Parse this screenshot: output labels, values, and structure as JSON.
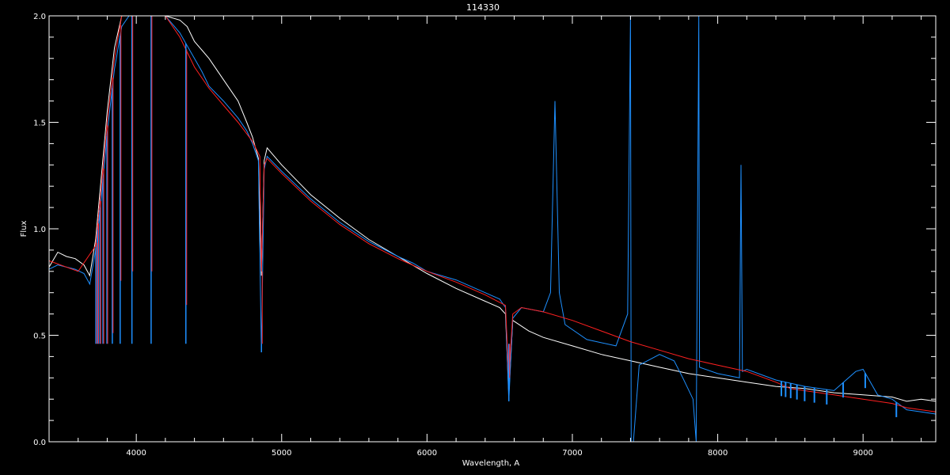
{
  "chart_data": {
    "type": "line",
    "title": "114330",
    "xlabel": "Wavelength, A",
    "ylabel": "Flux",
    "xlim": [
      3400,
      9500
    ],
    "ylim": [
      0.0,
      2.0
    ],
    "x_ticks": [
      4000,
      5000,
      6000,
      7000,
      8000,
      9000
    ],
    "x_tick_labels": [
      "4000",
      "5000",
      "6000",
      "7000",
      "8000",
      "9000"
    ],
    "y_ticks": [
      0.0,
      0.5,
      1.0,
      1.5,
      2.0
    ],
    "y_tick_labels": [
      "0.0",
      "0.5",
      "1.0",
      "1.5",
      "2.0"
    ],
    "grid": false,
    "colors": {
      "background": "#000000",
      "frame": "#ffffff"
    },
    "series": [
      {
        "color": "#ffffff",
        "points": [
          [
            3400,
            0.82
          ],
          [
            3460,
            0.89
          ],
          [
            3520,
            0.87
          ],
          [
            3580,
            0.86
          ],
          [
            3640,
            0.83
          ],
          [
            3680,
            0.78
          ],
          [
            3720,
            0.95
          ],
          [
            3760,
            1.25
          ],
          [
            3800,
            1.55
          ],
          [
            3850,
            1.85
          ],
          [
            3900,
            2.0
          ],
          [
            3950,
            2.0
          ],
          [
            4000,
            2.0
          ],
          [
            4100,
            2.0
          ],
          [
            4200,
            2.0
          ],
          [
            4300,
            1.98
          ],
          [
            4350,
            1.95
          ],
          [
            4400,
            1.88
          ],
          [
            4450,
            1.84
          ],
          [
            4500,
            1.8
          ],
          [
            4600,
            1.7
          ],
          [
            4700,
            1.6
          ],
          [
            4760,
            1.5
          ],
          [
            4800,
            1.43
          ],
          [
            4840,
            1.33
          ],
          [
            4861,
            0.78
          ],
          [
            4880,
            1.32
          ],
          [
            4900,
            1.38
          ],
          [
            5000,
            1.3
          ],
          [
            5200,
            1.16
          ],
          [
            5400,
            1.05
          ],
          [
            5600,
            0.95
          ],
          [
            5800,
            0.87
          ],
          [
            5900,
            0.83
          ],
          [
            6000,
            0.79
          ],
          [
            6200,
            0.72
          ],
          [
            6400,
            0.66
          ],
          [
            6500,
            0.63
          ],
          [
            6540,
            0.6
          ],
          [
            6563,
            0.22
          ],
          [
            6590,
            0.57
          ],
          [
            6700,
            0.52
          ],
          [
            6800,
            0.49
          ],
          [
            7000,
            0.45
          ],
          [
            7200,
            0.41
          ],
          [
            7400,
            0.38
          ],
          [
            7600,
            0.35
          ],
          [
            7800,
            0.32
          ],
          [
            8000,
            0.3
          ],
          [
            8200,
            0.28
          ],
          [
            8400,
            0.26
          ],
          [
            8600,
            0.25
          ],
          [
            8800,
            0.23
          ],
          [
            9000,
            0.22
          ],
          [
            9200,
            0.21
          ],
          [
            9300,
            0.19
          ],
          [
            9400,
            0.2
          ],
          [
            9500,
            0.19
          ]
        ]
      },
      {
        "color": "#1e90ff",
        "points": [
          [
            3400,
            0.81
          ],
          [
            3460,
            0.83
          ],
          [
            3520,
            0.82
          ],
          [
            3580,
            0.81
          ],
          [
            3640,
            0.79
          ],
          [
            3680,
            0.74
          ],
          [
            3720,
            0.9
          ],
          [
            3760,
            1.15
          ],
          [
            3800,
            1.45
          ],
          [
            3850,
            1.75
          ],
          [
            3900,
            1.95
          ],
          [
            3950,
            2.0
          ],
          [
            4000,
            2.0
          ],
          [
            4100,
            2.0
          ],
          [
            4200,
            2.0
          ],
          [
            4300,
            1.92
          ],
          [
            4350,
            1.86
          ],
          [
            4400,
            1.8
          ],
          [
            4450,
            1.74
          ],
          [
            4500,
            1.67
          ],
          [
            4600,
            1.6
          ],
          [
            4700,
            1.52
          ],
          [
            4760,
            1.46
          ],
          [
            4800,
            1.4
          ],
          [
            4840,
            1.32
          ],
          [
            4861,
            0.42
          ],
          [
            4880,
            1.28
          ],
          [
            4900,
            1.34
          ],
          [
            5000,
            1.27
          ],
          [
            5200,
            1.14
          ],
          [
            5400,
            1.03
          ],
          [
            5600,
            0.94
          ],
          [
            5800,
            0.87
          ],
          [
            5900,
            0.84
          ],
          [
            6000,
            0.8
          ],
          [
            6200,
            0.76
          ],
          [
            6400,
            0.7
          ],
          [
            6500,
            0.67
          ],
          [
            6540,
            0.63
          ],
          [
            6563,
            0.19
          ],
          [
            6590,
            0.58
          ],
          [
            6650,
            0.63
          ],
          [
            6800,
            0.61
          ],
          [
            6850,
            0.7
          ],
          [
            6880,
            1.6
          ],
          [
            6910,
            0.7
          ],
          [
            6950,
            0.55
          ],
          [
            7100,
            0.48
          ],
          [
            7300,
            0.45
          ],
          [
            7380,
            0.6
          ],
          [
            7400,
            2.0
          ],
          [
            7405,
            0.0
          ],
          [
            7420,
            0.0
          ],
          [
            7460,
            0.36
          ],
          [
            7600,
            0.41
          ],
          [
            7700,
            0.38
          ],
          [
            7760,
            0.3
          ],
          [
            7830,
            0.2
          ],
          [
            7852,
            0.0
          ],
          [
            7870,
            2.0
          ],
          [
            7875,
            0.35
          ],
          [
            8000,
            0.32
          ],
          [
            8150,
            0.3
          ],
          [
            8160,
            1.3
          ],
          [
            8170,
            0.33
          ],
          [
            8200,
            0.34
          ],
          [
            8400,
            0.29
          ],
          [
            8600,
            0.26
          ],
          [
            8800,
            0.24
          ],
          [
            8950,
            0.33
          ],
          [
            9000,
            0.34
          ],
          [
            9100,
            0.22
          ],
          [
            9200,
            0.2
          ],
          [
            9300,
            0.15
          ],
          [
            9400,
            0.14
          ],
          [
            9500,
            0.13
          ]
        ]
      },
      {
        "color": "#ff2020",
        "points": [
          [
            3400,
            0.85
          ],
          [
            3600,
            0.8
          ],
          [
            3720,
            0.92
          ],
          [
            3760,
            1.2
          ],
          [
            3800,
            1.5
          ],
          [
            3850,
            1.8
          ],
          [
            3900,
            2.0
          ],
          [
            4200,
            2.0
          ],
          [
            4300,
            1.9
          ],
          [
            4400,
            1.76
          ],
          [
            4500,
            1.66
          ],
          [
            4600,
            1.58
          ],
          [
            4700,
            1.5
          ],
          [
            4800,
            1.41
          ],
          [
            4850,
            1.34
          ],
          [
            4861,
            0.8
          ],
          [
            4880,
            1.3
          ],
          [
            4900,
            1.33
          ],
          [
            5000,
            1.26
          ],
          [
            5200,
            1.13
          ],
          [
            5400,
            1.02
          ],
          [
            5600,
            0.93
          ],
          [
            5800,
            0.86
          ],
          [
            6000,
            0.8
          ],
          [
            6200,
            0.75
          ],
          [
            6400,
            0.69
          ],
          [
            6540,
            0.64
          ],
          [
            6563,
            0.3
          ],
          [
            6590,
            0.6
          ],
          [
            6650,
            0.63
          ],
          [
            6800,
            0.61
          ],
          [
            7000,
            0.57
          ],
          [
            7200,
            0.52
          ],
          [
            7400,
            0.47
          ],
          [
            7600,
            0.43
          ],
          [
            7800,
            0.39
          ],
          [
            8000,
            0.36
          ],
          [
            8200,
            0.33
          ],
          [
            8400,
            0.28
          ],
          [
            8500,
            0.25
          ],
          [
            8800,
            0.22
          ],
          [
            9000,
            0.2
          ],
          [
            9200,
            0.18
          ],
          [
            9300,
            0.16
          ],
          [
            9400,
            0.15
          ],
          [
            9500,
            0.14
          ]
        ]
      }
    ],
    "absorption_lines": [
      3722,
      3735,
      3750,
      3771,
      3798,
      3835,
      3889,
      3970,
      4102,
      4341,
      4861,
      6563
    ],
    "line_series_index": 1,
    "line_depth_value": 0.46,
    "paschen_lines": [
      8438,
      8467,
      8502,
      8545,
      8598,
      8665,
      8750,
      8863,
      9015,
      9229
    ],
    "paschen_depth": 0.07
  }
}
